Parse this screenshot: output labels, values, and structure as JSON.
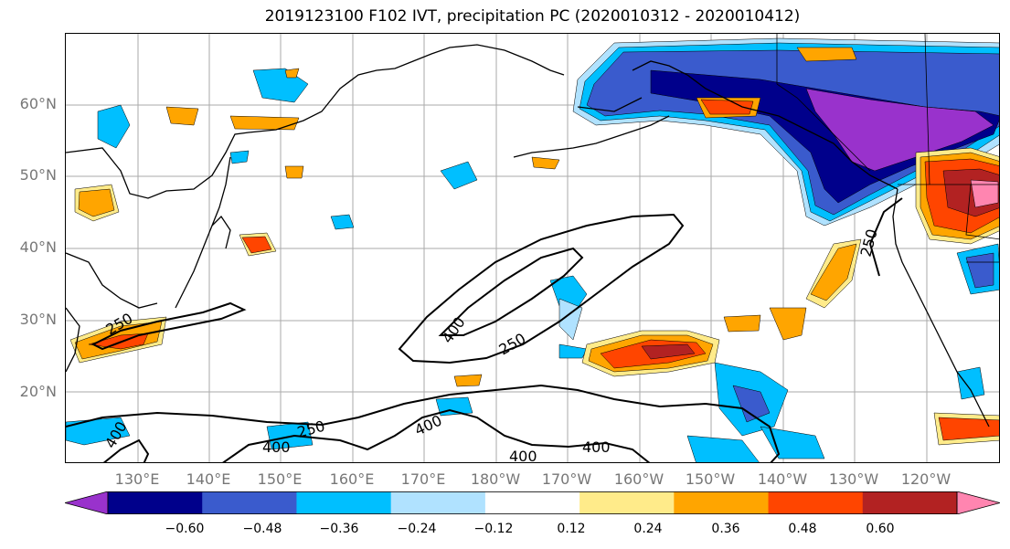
{
  "title": "2019123100 F102 IVT, precipitation PC (2020010312 - 2020010412)",
  "lat_labels": [
    "60°N",
    "50°N",
    "40°N",
    "30°N",
    "20°N"
  ],
  "lon_labels": [
    "130°E",
    "140°E",
    "150°E",
    "160°E",
    "170°E",
    "180°W",
    "170°W",
    "160°W",
    "150°W",
    "140°W",
    "130°W",
    "120°W"
  ],
  "colorbar": {
    "tick_labels": [
      "−0.60",
      "−0.48",
      "−0.36",
      "−0.24",
      "−0.12",
      "0.12",
      "0.24",
      "0.36",
      "0.48",
      "0.60"
    ],
    "colors": [
      "#9932CC",
      "#00008B",
      "#3A5BCD",
      "#00BFFF",
      "#B0E2FF",
      "#FFFFFF",
      "#FFEB8A",
      "#FFA500",
      "#FF4500",
      "#B22222",
      "#FF85B0"
    ]
  },
  "contour_labels": [
    "250",
    "400",
    "400",
    "250",
    "250",
    "400",
    "400",
    "250",
    "400",
    "400"
  ],
  "colors": {
    "grid": "#aaaaaa",
    "coast": "#000000",
    "axis_label": "#777777"
  }
}
